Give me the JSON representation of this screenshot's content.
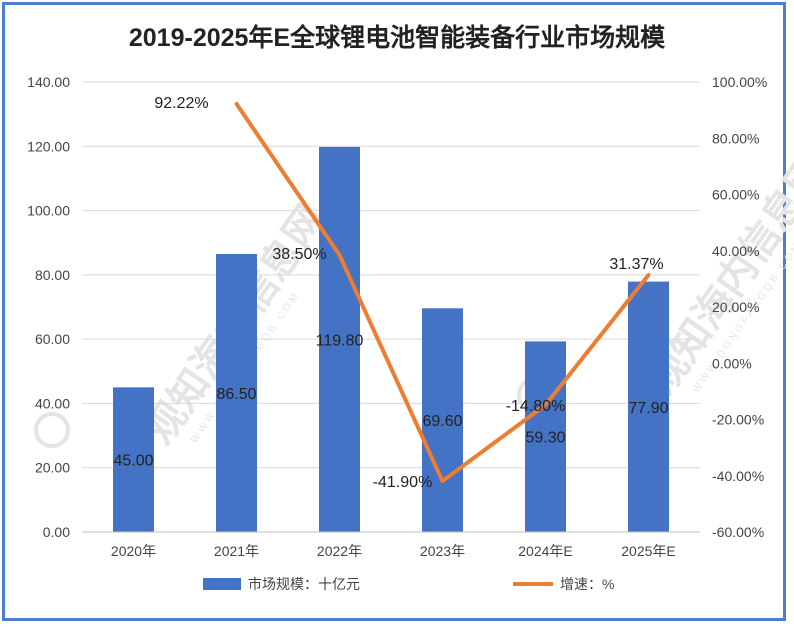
{
  "chart_data": {
    "type": "bar",
    "title": "2019-2025年E全球锂电池智能装备行业市场规模",
    "categories": [
      "2020年",
      "2021年",
      "2022年",
      "2023年",
      "2024年E",
      "2025年E"
    ],
    "y_left": {
      "min": 0,
      "max": 140,
      "step": 20,
      "ticks": [
        "0.00",
        "20.00",
        "40.00",
        "60.00",
        "80.00",
        "100.00",
        "120.00",
        "140.00"
      ]
    },
    "y_right": {
      "min": -60,
      "max": 100,
      "step": 20,
      "ticks": [
        "-60.00%",
        "-40.00%",
        "-20.00%",
        "0.00%",
        "20.00%",
        "40.00%",
        "60.00%",
        "80.00%",
        "100.00%"
      ]
    },
    "grid": true,
    "legend_position": "bottom",
    "series": [
      {
        "name": "市场规模：十亿元",
        "type": "bar",
        "axis": "left",
        "color": "#4472c4",
        "values": [
          45.0,
          86.5,
          119.8,
          69.6,
          59.3,
          77.9
        ],
        "labels": [
          "45.00",
          "86.50",
          "119.80",
          "69.60",
          "59.30",
          "77.90"
        ]
      },
      {
        "name": "增速：%",
        "type": "line",
        "axis": "right",
        "color": "#ed7d31",
        "values": [
          null,
          92.22,
          38.5,
          -41.9,
          -14.8,
          31.37
        ],
        "labels": [
          "",
          "92.22%",
          "38.50%",
          "-41.90%",
          "-14.80%",
          "31.37%"
        ]
      }
    ]
  },
  "watermark": {
    "text": "观知海内信息网",
    "subtext": "WWW.DONGFANGQB.COM",
    "color": "#e4e4e4"
  }
}
